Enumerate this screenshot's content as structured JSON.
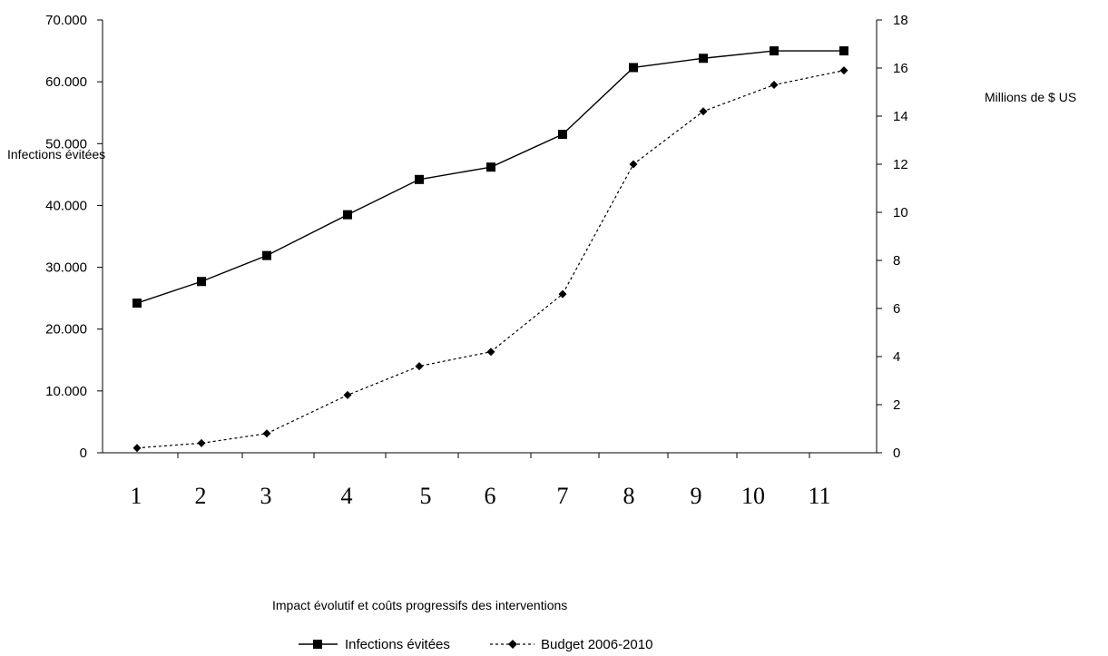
{
  "chart_data": {
    "type": "line",
    "title": "",
    "xlabel": "Impact évolutif et coûts progressifs des interventions",
    "ylabel_left": "Infections évitées",
    "ylabel_right": "Millions de $ US",
    "categories": [
      "1",
      "2",
      "3",
      "4",
      "5",
      "6",
      "7",
      "8",
      "9",
      "10",
      "11"
    ],
    "y_left": {
      "min": 0,
      "max": 70000,
      "step": 10000,
      "tick_labels": [
        "0",
        "10.000",
        "20.000",
        "30.000",
        "40.000",
        "50.000",
        "60.000",
        "70.000"
      ]
    },
    "y_right": {
      "min": 0,
      "max": 18,
      "step": 2,
      "tick_labels": [
        "0",
        "2",
        "4",
        "6",
        "8",
        "10",
        "12",
        "14",
        "16",
        "18"
      ]
    },
    "series": [
      {
        "name": "Infections évitées",
        "axis": "left",
        "marker": "square",
        "line": "solid",
        "color": "#000000",
        "values": [
          24200,
          27700,
          31900,
          38500,
          44200,
          46200,
          51500,
          62300,
          63800,
          65000,
          65000
        ]
      },
      {
        "name": "Budget 2006-2010",
        "axis": "right",
        "marker": "diamond",
        "line": "dashed",
        "color": "#000000",
        "values": [
          0.2,
          0.4,
          0.8,
          2.4,
          3.6,
          4.2,
          6.6,
          12.0,
          14.2,
          15.3,
          15.9
        ]
      }
    ],
    "grid": false,
    "legend_position": "bottom-center"
  }
}
